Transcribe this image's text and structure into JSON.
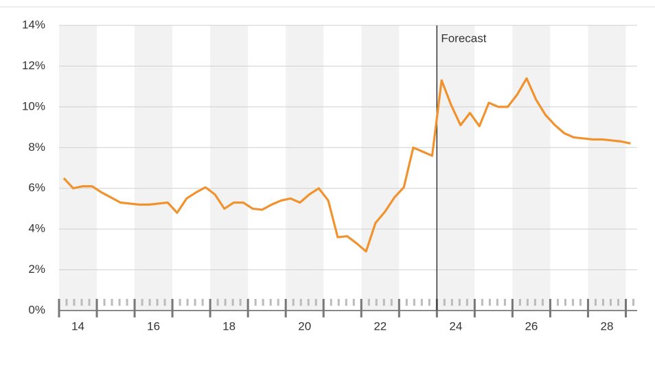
{
  "chart_data": {
    "type": "line",
    "annotation": {
      "text": "Forecast",
      "x": 2024
    },
    "x": [
      2014.125,
      2014.375,
      2014.625,
      2014.875,
      2015.125,
      2015.375,
      2015.625,
      2015.875,
      2016.125,
      2016.375,
      2016.625,
      2016.875,
      2017.125,
      2017.375,
      2017.625,
      2017.875,
      2018.125,
      2018.375,
      2018.625,
      2018.875,
      2019.125,
      2019.375,
      2019.625,
      2019.875,
      2020.125,
      2020.375,
      2020.625,
      2020.875,
      2021.125,
      2021.375,
      2021.625,
      2021.875,
      2022.125,
      2022.375,
      2022.625,
      2022.875,
      2023.125,
      2023.375,
      2023.625,
      2023.875,
      2024.125,
      2024.375,
      2024.625,
      2024.875,
      2025.125,
      2025.375,
      2025.625,
      2025.875,
      2026.125,
      2026.375,
      2026.625,
      2026.875,
      2027.125,
      2027.375,
      2027.625,
      2027.875,
      2028.125,
      2028.375,
      2028.625,
      2028.875,
      2029.125
    ],
    "series": [
      {
        "color": "#f0922d",
        "values": [
          6.5,
          6.0,
          6.1,
          6.1,
          5.8,
          5.55,
          5.3,
          5.25,
          5.2,
          5.2,
          5.25,
          5.3,
          4.8,
          5.5,
          5.8,
          6.05,
          5.7,
          5.0,
          5.3,
          5.3,
          5.0,
          4.95,
          5.2,
          5.4,
          5.5,
          5.3,
          5.7,
          6.0,
          5.4,
          3.6,
          3.65,
          3.3,
          2.9,
          4.3,
          4.85,
          5.55,
          6.05,
          8.0,
          7.8,
          7.6,
          11.3,
          10.1,
          9.1,
          9.7,
          9.05,
          10.2,
          10.0,
          10.0,
          10.6,
          11.4,
          10.35,
          9.6,
          9.1,
          8.7,
          8.5,
          8.45,
          8.4,
          8.4,
          8.35,
          8.3,
          8.2
        ]
      }
    ],
    "xlim": [
      2014,
      2029.3
    ],
    "xticks": [
      {
        "value": 2014.5,
        "label": "14"
      },
      {
        "value": 2016.5,
        "label": "16"
      },
      {
        "value": 2018.5,
        "label": "18"
      },
      {
        "value": 2020.5,
        "label": "20"
      },
      {
        "value": 2022.5,
        "label": "22"
      },
      {
        "value": 2024.5,
        "label": "24"
      },
      {
        "value": 2026.5,
        "label": "26"
      },
      {
        "value": 2028.5,
        "label": "28"
      }
    ],
    "ylim": [
      0,
      14
    ],
    "yticks": [
      {
        "value": 0,
        "label": "0%"
      },
      {
        "value": 2,
        "label": "2%"
      },
      {
        "value": 4,
        "label": "4%"
      },
      {
        "value": 6,
        "label": "6%"
      },
      {
        "value": 8,
        "label": "8%"
      },
      {
        "value": 10,
        "label": "10%"
      },
      {
        "value": 12,
        "label": "12%"
      },
      {
        "value": 14,
        "label": "14%"
      }
    ],
    "grid": true
  }
}
